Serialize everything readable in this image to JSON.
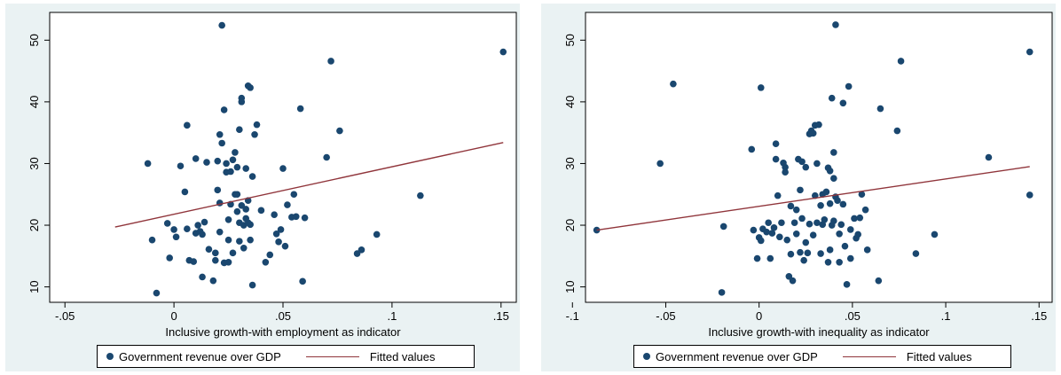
{
  "colors": {
    "background": "#eaf2f3",
    "marker": "#1a476f",
    "fit_line": "#90353b"
  },
  "chart_data": [
    {
      "type": "scatter",
      "xlabel": "Inclusive growth-with employment as indicator",
      "ylabel": "",
      "xlim": [
        -0.057,
        0.157
      ],
      "ylim": [
        7.5,
        54.5
      ],
      "xticks": [
        -0.05,
        0,
        0.05,
        0.1,
        0.15
      ],
      "xtick_labels": [
        "-.05",
        "0",
        ".05",
        ".1",
        ".15"
      ],
      "yticks": [
        10,
        20,
        30,
        40,
        50
      ],
      "ytick_labels": [
        "10",
        "20",
        "30",
        "40",
        "50"
      ],
      "grid": false,
      "legend": {
        "position": "bottom",
        "entries": [
          "Government revenue over GDP",
          "Fitted values"
        ]
      },
      "series": [
        {
          "name": "Government revenue over GDP",
          "points": [
            [
              -0.012,
              30.0
            ],
            [
              -0.01,
              17.6
            ],
            [
              -0.008,
              9.0
            ],
            [
              -0.003,
              20.3
            ],
            [
              -0.002,
              14.7
            ],
            [
              0.0,
              19.3
            ],
            [
              0.001,
              18.1
            ],
            [
              0.003,
              29.6
            ],
            [
              0.005,
              25.4
            ],
            [
              0.006,
              36.2
            ],
            [
              0.006,
              19.4
            ],
            [
              0.007,
              14.3
            ],
            [
              0.009,
              14.1
            ],
            [
              0.01,
              18.7
            ],
            [
              0.01,
              30.8
            ],
            [
              0.011,
              20.0
            ],
            [
              0.012,
              19.0
            ],
            [
              0.013,
              11.6
            ],
            [
              0.013,
              18.5
            ],
            [
              0.014,
              20.5
            ],
            [
              0.015,
              30.2
            ],
            [
              0.016,
              16.1
            ],
            [
              0.018,
              11.0
            ],
            [
              0.019,
              15.5
            ],
            [
              0.019,
              14.3
            ],
            [
              0.02,
              30.4
            ],
            [
              0.02,
              25.7
            ],
            [
              0.021,
              34.7
            ],
            [
              0.021,
              23.6
            ],
            [
              0.021,
              18.9
            ],
            [
              0.022,
              33.3
            ],
            [
              0.022,
              52.4
            ],
            [
              0.023,
              38.7
            ],
            [
              0.023,
              13.9
            ],
            [
              0.024,
              30.0
            ],
            [
              0.024,
              28.6
            ],
            [
              0.025,
              20.9
            ],
            [
              0.025,
              17.6
            ],
            [
              0.025,
              14.0
            ],
            [
              0.026,
              28.7
            ],
            [
              0.026,
              23.4
            ],
            [
              0.027,
              30.6
            ],
            [
              0.027,
              15.5
            ],
            [
              0.028,
              25.0
            ],
            [
              0.028,
              31.8
            ],
            [
              0.029,
              29.4
            ],
            [
              0.029,
              22.2
            ],
            [
              0.029,
              25.0
            ],
            [
              0.03,
              17.4
            ],
            [
              0.03,
              20.4
            ],
            [
              0.03,
              35.5
            ],
            [
              0.031,
              40.0
            ],
            [
              0.031,
              23.2
            ],
            [
              0.031,
              40.6
            ],
            [
              0.032,
              20.0
            ],
            [
              0.032,
              16.3
            ],
            [
              0.033,
              29.2
            ],
            [
              0.033,
              22.6
            ],
            [
              0.033,
              21.1
            ],
            [
              0.034,
              20.4
            ],
            [
              0.034,
              24.0
            ],
            [
              0.034,
              42.6
            ],
            [
              0.035,
              42.3
            ],
            [
              0.035,
              17.6
            ],
            [
              0.035,
              20.1
            ],
            [
              0.036,
              27.9
            ],
            [
              0.036,
              10.3
            ],
            [
              0.037,
              34.7
            ],
            [
              0.038,
              36.3
            ],
            [
              0.04,
              22.4
            ],
            [
              0.042,
              14.0
            ],
            [
              0.044,
              15.2
            ],
            [
              0.046,
              21.7
            ],
            [
              0.047,
              18.6
            ],
            [
              0.048,
              17.3
            ],
            [
              0.049,
              19.3
            ],
            [
              0.05,
              29.2
            ],
            [
              0.051,
              16.6
            ],
            [
              0.052,
              23.3
            ],
            [
              0.054,
              21.3
            ],
            [
              0.055,
              25.0
            ],
            [
              0.056,
              21.4
            ],
            [
              0.058,
              38.9
            ],
            [
              0.059,
              10.9
            ],
            [
              0.06,
              21.2
            ],
            [
              0.07,
              31.0
            ],
            [
              0.072,
              46.6
            ],
            [
              0.076,
              35.3
            ],
            [
              0.084,
              15.4
            ],
            [
              0.086,
              16.0
            ],
            [
              0.093,
              18.5
            ],
            [
              0.113,
              24.8
            ],
            [
              0.151,
              48.1
            ]
          ]
        },
        {
          "name": "Fitted values",
          "line": [
            [
              -0.027,
              19.7
            ],
            [
              0.151,
              33.4
            ]
          ]
        }
      ]
    },
    {
      "type": "scatter",
      "xlabel": "Inclusive growth-with inequality as indicator",
      "ylabel": "",
      "xlim": [
        -0.093,
        0.157
      ],
      "ylim": [
        7.5,
        54.5
      ],
      "xticks": [
        -0.1,
        -0.05,
        0,
        0.05,
        0.1,
        0.15
      ],
      "xtick_labels": [
        "-.1",
        "-.05",
        "0",
        ".05",
        ".1",
        ".15"
      ],
      "yticks": [
        10,
        20,
        30,
        40,
        50
      ],
      "ytick_labels": [
        "10",
        "20",
        "30",
        "40",
        "50"
      ],
      "grid": false,
      "legend": {
        "position": "bottom",
        "entries": [
          "Government revenue over GDP",
          "Fitted values"
        ]
      },
      "series": [
        {
          "name": "Government revenue over GDP",
          "points": [
            [
              -0.087,
              19.2
            ],
            [
              -0.053,
              30.0
            ],
            [
              -0.046,
              42.9
            ],
            [
              -0.02,
              9.1
            ],
            [
              -0.019,
              19.8
            ],
            [
              -0.004,
              32.3
            ],
            [
              -0.003,
              19.2
            ],
            [
              -0.001,
              14.6
            ],
            [
              0.0,
              18.0
            ],
            [
              0.001,
              17.5
            ],
            [
              0.001,
              42.3
            ],
            [
              0.002,
              19.4
            ],
            [
              0.004,
              18.9
            ],
            [
              0.005,
              20.4
            ],
            [
              0.006,
              14.6
            ],
            [
              0.007,
              18.7
            ],
            [
              0.008,
              19.6
            ],
            [
              0.009,
              33.2
            ],
            [
              0.009,
              30.7
            ],
            [
              0.01,
              24.8
            ],
            [
              0.011,
              18.1
            ],
            [
              0.012,
              20.4
            ],
            [
              0.013,
              30.1
            ],
            [
              0.014,
              29.4
            ],
            [
              0.014,
              28.6
            ],
            [
              0.015,
              17.6
            ],
            [
              0.016,
              11.7
            ],
            [
              0.017,
              23.1
            ],
            [
              0.017,
              15.3
            ],
            [
              0.018,
              11.0
            ],
            [
              0.019,
              20.4
            ],
            [
              0.02,
              18.6
            ],
            [
              0.02,
              22.5
            ],
            [
              0.021,
              30.7
            ],
            [
              0.022,
              25.7
            ],
            [
              0.022,
              15.6
            ],
            [
              0.023,
              30.3
            ],
            [
              0.023,
              21.1
            ],
            [
              0.024,
              14.3
            ],
            [
              0.025,
              17.2
            ],
            [
              0.025,
              29.4
            ],
            [
              0.026,
              15.5
            ],
            [
              0.027,
              20.2
            ],
            [
              0.027,
              34.8
            ],
            [
              0.028,
              35.3
            ],
            [
              0.029,
              34.9
            ],
            [
              0.029,
              18.4
            ],
            [
              0.03,
              24.8
            ],
            [
              0.03,
              36.2
            ],
            [
              0.031,
              30.0
            ],
            [
              0.031,
              20.4
            ],
            [
              0.032,
              36.3
            ],
            [
              0.033,
              23.2
            ],
            [
              0.033,
              15.4
            ],
            [
              0.034,
              25.0
            ],
            [
              0.034,
              20.1
            ],
            [
              0.035,
              20.9
            ],
            [
              0.036,
              25.4
            ],
            [
              0.037,
              29.3
            ],
            [
              0.037,
              14.0
            ],
            [
              0.038,
              16.0
            ],
            [
              0.038,
              23.5
            ],
            [
              0.038,
              28.8
            ],
            [
              0.039,
              20.0
            ],
            [
              0.039,
              40.6
            ],
            [
              0.04,
              31.8
            ],
            [
              0.04,
              27.6
            ],
            [
              0.04,
              20.7
            ],
            [
              0.041,
              24.6
            ],
            [
              0.041,
              52.5
            ],
            [
              0.042,
              24.0
            ],
            [
              0.043,
              18.6
            ],
            [
              0.043,
              14.0
            ],
            [
              0.044,
              20.1
            ],
            [
              0.045,
              23.4
            ],
            [
              0.045,
              39.8
            ],
            [
              0.046,
              16.6
            ],
            [
              0.047,
              10.4
            ],
            [
              0.048,
              42.5
            ],
            [
              0.049,
              14.6
            ],
            [
              0.049,
              19.3
            ],
            [
              0.051,
              21.1
            ],
            [
              0.052,
              17.9
            ],
            [
              0.053,
              18.5
            ],
            [
              0.054,
              21.2
            ],
            [
              0.055,
              25.0
            ],
            [
              0.057,
              22.5
            ],
            [
              0.058,
              16.0
            ],
            [
              0.064,
              11.0
            ],
            [
              0.065,
              38.9
            ],
            [
              0.074,
              35.3
            ],
            [
              0.076,
              46.6
            ],
            [
              0.084,
              15.4
            ],
            [
              0.094,
              18.5
            ],
            [
              0.123,
              31.0
            ],
            [
              0.145,
              48.1
            ],
            [
              0.145,
              24.9
            ]
          ]
        },
        {
          "name": "Fitted values",
          "line": [
            [
              -0.087,
              19.2
            ],
            [
              0.145,
              29.5
            ]
          ]
        }
      ]
    }
  ]
}
